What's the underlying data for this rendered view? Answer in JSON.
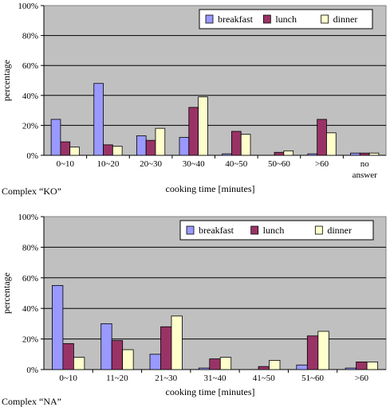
{
  "chart_data": [
    {
      "type": "bar",
      "caption": "Complex “KO”",
      "xlabel": "cooking time [minutes]",
      "ylabel": "percentage",
      "ylim": [
        0,
        100
      ],
      "yticks": [
        "0%",
        "20%",
        "40%",
        "60%",
        "80%",
        "100%"
      ],
      "grid": true,
      "legend_position": "top-right",
      "categories": [
        "0~10",
        "10~20",
        "20~30",
        "30~40",
        "40~50",
        "50~60",
        ">60",
        "no answer"
      ],
      "series": [
        {
          "name": "breakfast",
          "color": "#9999ff",
          "values": [
            24,
            48,
            13,
            12,
            1,
            0,
            1,
            1.5
          ]
        },
        {
          "name": "lunch",
          "color": "#993366",
          "values": [
            9,
            7,
            10,
            32,
            16,
            2,
            24,
            1.5
          ]
        },
        {
          "name": "dinner",
          "color": "#ffffcc",
          "values": [
            5.5,
            6,
            18,
            39,
            14,
            3,
            15,
            1.5
          ]
        }
      ]
    },
    {
      "type": "bar",
      "caption": "Complex “NA”",
      "xlabel": "cooking time [minutes]",
      "ylabel": "percentage",
      "ylim": [
        0,
        100
      ],
      "yticks": [
        "0%",
        "20%",
        "40%",
        "60%",
        "80%",
        "100%"
      ],
      "grid": true,
      "legend_position": "top-right",
      "categories": [
        "0~10",
        "11~20",
        "21~30",
        "31~40",
        "41~50",
        "51~60",
        ">60"
      ],
      "series": [
        {
          "name": "breakfast",
          "color": "#9999ff",
          "values": [
            55,
            30,
            10,
            1,
            0,
            3,
            1
          ]
        },
        {
          "name": "lunch",
          "color": "#993366",
          "values": [
            17,
            19,
            28,
            7,
            2,
            22,
            5
          ]
        },
        {
          "name": "dinner",
          "color": "#ffffcc",
          "values": [
            8,
            13,
            35,
            8,
            6,
            25,
            5
          ]
        }
      ]
    }
  ]
}
